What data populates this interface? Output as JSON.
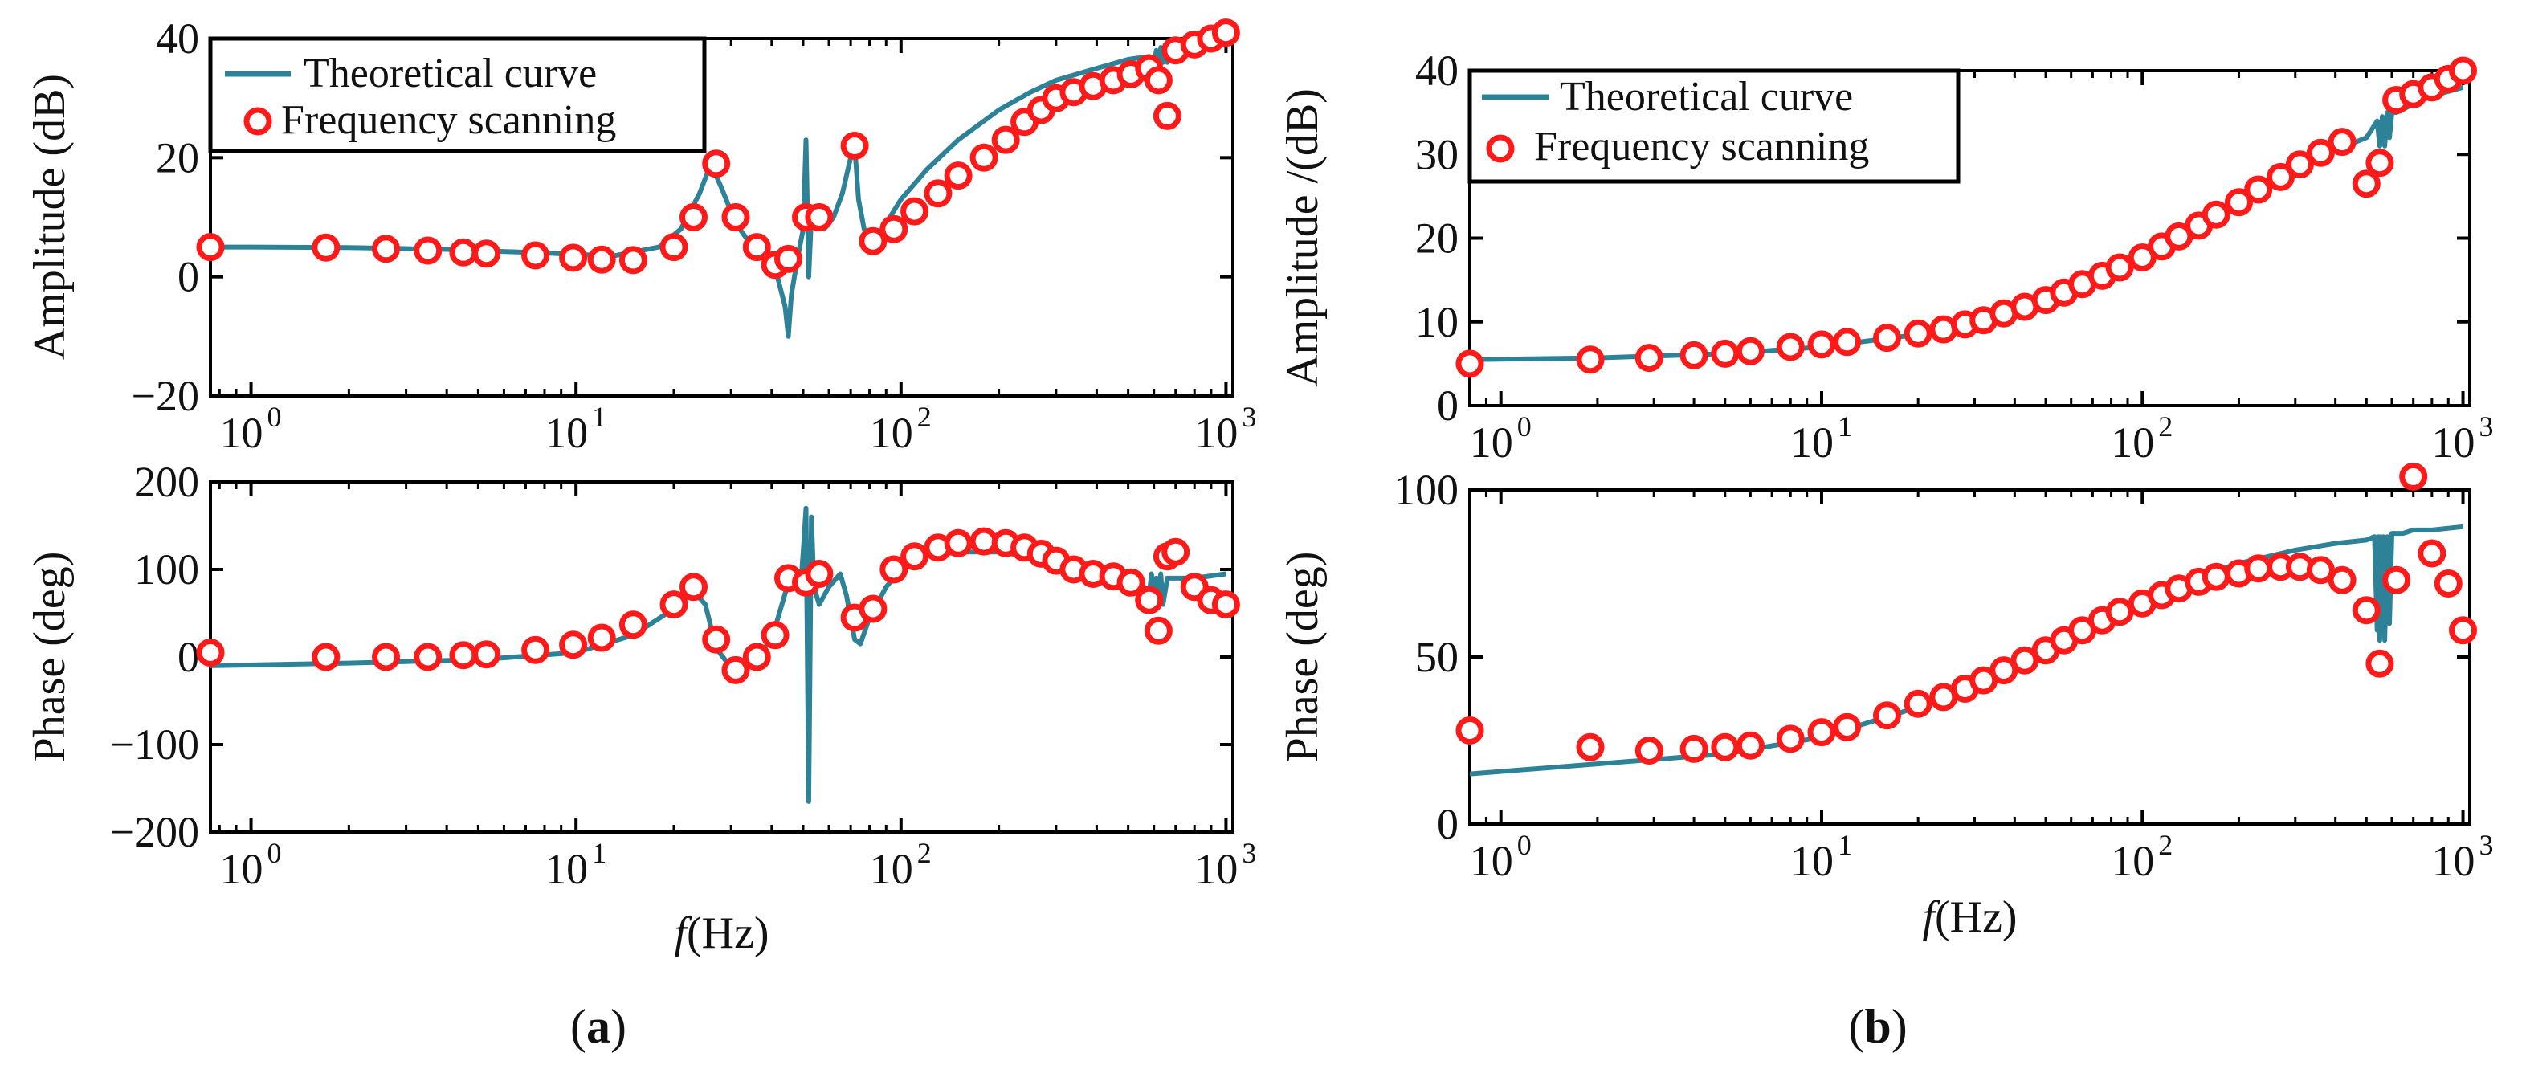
{
  "colors": {
    "theory": "#2e8297",
    "scan": "#ff1a1a",
    "axis": "#000000"
  },
  "captions": [
    {
      "open": "(",
      "letter": "a",
      "close": ")"
    },
    {
      "open": "(",
      "letter": "b",
      "close": ")"
    }
  ],
  "chart_data": [
    {
      "type": "line",
      "panel": "a-top",
      "title": "",
      "xlabel": "",
      "ylabel": "Amplitude (dB)",
      "xscale": "log",
      "xlim": [
        0.75,
        1050
      ],
      "ylim": [
        -20,
        40
      ],
      "yticks": [
        -20,
        0,
        20,
        40
      ],
      "yticklabels": [
        "−20",
        "0",
        "20",
        "40"
      ],
      "xticks": [
        {
          "base": "10",
          "exp": "0",
          "value": 1
        },
        {
          "base": "10",
          "exp": "1",
          "value": 10
        },
        {
          "base": "10",
          "exp": "2",
          "value": 100
        },
        {
          "base": "10",
          "exp": "3",
          "value": 1000
        }
      ],
      "legend": {
        "position": "top-left",
        "entries": [
          "Theoretical curve",
          "Frequency scanning"
        ]
      },
      "series": [
        {
          "name": "Theoretical curve",
          "style": "line",
          "x": [
            0.75,
            1,
            2,
            4,
            8,
            13,
            18,
            21,
            24,
            26,
            28,
            31,
            36,
            41,
            44,
            45,
            46,
            48,
            50,
            51,
            52,
            53,
            55,
            58,
            62,
            66,
            70,
            72,
            74,
            77,
            80,
            85,
            90,
            100,
            120,
            150,
            200,
            250,
            300,
            400,
            500,
            580,
            600,
            610,
            620,
            630,
            640,
            650,
            660,
            700,
            800,
            1000
          ],
          "y": [
            5,
            5,
            4.9,
            4.6,
            4,
            3.5,
            5,
            8,
            14,
            19,
            15,
            9,
            4,
            1.5,
            -5,
            -10,
            -3,
            3,
            8,
            23,
            0,
            10,
            9,
            8,
            10,
            14,
            20,
            22,
            13,
            8,
            6,
            7,
            9,
            13,
            18,
            23,
            28,
            31,
            33,
            35,
            36.5,
            37,
            35,
            38,
            34,
            38.5,
            36,
            39,
            36,
            38,
            38,
            39
          ]
        },
        {
          "name": "Frequency scanning",
          "style": "markers",
          "x": [
            0.75,
            1.7,
            2.6,
            3.5,
            4.5,
            5.3,
            7.5,
            9.8,
            12,
            15,
            20,
            23,
            27,
            31,
            36,
            41,
            45,
            51,
            56,
            72,
            82,
            95,
            110,
            130,
            150,
            180,
            210,
            240,
            270,
            300,
            340,
            390,
            450,
            510,
            580,
            620,
            660,
            700,
            800,
            900,
            1000
          ],
          "y": [
            5,
            4.9,
            4.7,
            4.4,
            4.1,
            3.9,
            3.6,
            3.2,
            2.9,
            2.8,
            5,
            10,
            19,
            10,
            5,
            2,
            3,
            10,
            10,
            22,
            6,
            8,
            11,
            14,
            17,
            20,
            23,
            26,
            28,
            30,
            31,
            32,
            33,
            34,
            35,
            33,
            27,
            38,
            39,
            40,
            41
          ]
        }
      ]
    },
    {
      "type": "line",
      "panel": "a-bottom",
      "title": "",
      "xlabel": "f(Hz)",
      "ylabel": "Phase   (deg)",
      "xscale": "log",
      "xlim": [
        0.75,
        1050
      ],
      "ylim": [
        -200,
        200
      ],
      "yticks": [
        -200,
        -100,
        0,
        100,
        200
      ],
      "yticklabels": [
        "−200",
        "−100",
        "0",
        "100",
        "200"
      ],
      "xticks": [
        {
          "base": "10",
          "exp": "0",
          "value": 1
        },
        {
          "base": "10",
          "exp": "1",
          "value": 10
        },
        {
          "base": "10",
          "exp": "2",
          "value": 100
        },
        {
          "base": "10",
          "exp": "3",
          "value": 1000
        }
      ],
      "series": [
        {
          "name": "Theoretical curve",
          "style": "line",
          "x": [
            0.75,
            2,
            5,
            10,
            15,
            20,
            23,
            25,
            27,
            29,
            31,
            33,
            36,
            40,
            43,
            45,
            47,
            49,
            50,
            51,
            52,
            53,
            54,
            56,
            60,
            65,
            68,
            72,
            75,
            80,
            90,
            100,
            120,
            150,
            200,
            300,
            400,
            500,
            560,
            580,
            590,
            600,
            610,
            620,
            630,
            640,
            660,
            700,
            800,
            1000
          ],
          "y": [
            -10,
            -7,
            -3,
            5,
            25,
            55,
            75,
            60,
            10,
            -5,
            -8,
            -5,
            0,
            20,
            60,
            85,
            90,
            75,
            120,
            170,
            -165,
            160,
            80,
            60,
            80,
            95,
            70,
            20,
            15,
            45,
            80,
            100,
            115,
            120,
            120,
            110,
            100,
            85,
            80,
            70,
            95,
            55,
            90,
            60,
            95,
            60,
            90,
            90,
            90,
            95
          ]
        },
        {
          "name": "Frequency scanning",
          "style": "markers",
          "x": [
            0.75,
            1.7,
            2.6,
            3.5,
            4.5,
            5.3,
            7.5,
            9.8,
            12,
            15,
            20,
            23,
            27,
            31,
            36,
            41,
            45,
            51,
            56,
            72,
            82,
            95,
            110,
            130,
            150,
            180,
            210,
            240,
            270,
            300,
            340,
            390,
            450,
            510,
            580,
            620,
            660,
            700,
            800,
            900,
            1000
          ],
          "y": [
            5,
            0,
            0,
            0,
            2,
            3,
            8,
            14,
            22,
            37,
            60,
            80,
            20,
            -15,
            0,
            25,
            90,
            85,
            95,
            45,
            55,
            100,
            115,
            125,
            130,
            132,
            130,
            125,
            118,
            110,
            100,
            95,
            92,
            85,
            65,
            30,
            115,
            120,
            80,
            65,
            60
          ]
        }
      ]
    },
    {
      "type": "line",
      "panel": "b-top",
      "title": "",
      "xlabel": "",
      "ylabel": "Amplitude /(dB)",
      "xscale": "log",
      "xlim": [
        0.8,
        1050
      ],
      "ylim": [
        0,
        40
      ],
      "yticks": [
        0,
        10,
        20,
        30,
        40
      ],
      "yticklabels": [
        "0",
        "10",
        "20",
        "30",
        "40"
      ],
      "xticks": [
        {
          "base": "10",
          "exp": "0",
          "value": 1
        },
        {
          "base": "10",
          "exp": "1",
          "value": 10
        },
        {
          "base": "10",
          "exp": "2",
          "value": 100
        },
        {
          "base": "10",
          "exp": "3",
          "value": 1000
        }
      ],
      "legend": {
        "position": "top-left",
        "entries": [
          "Theoretical curve",
          "Frequency scanning"
        ]
      },
      "series": [
        {
          "name": "Theoretical curve",
          "style": "line",
          "x": [
            0.8,
            2,
            5,
            10,
            20,
            30,
            50,
            70,
            100,
            150,
            200,
            300,
            400,
            500,
            540,
            550,
            560,
            570,
            580,
            590,
            600,
            620,
            700,
            800,
            1000
          ],
          "y": [
            5.5,
            5.7,
            6.2,
            7,
            8.5,
            10.5,
            13,
            15.5,
            18.5,
            22,
            24.5,
            28,
            30.5,
            32,
            34,
            31,
            34.5,
            31,
            35,
            32,
            35,
            35,
            36,
            37,
            38
          ]
        },
        {
          "name": "Frequency scanning",
          "style": "markers",
          "x": [
            0.8,
            1.9,
            2.9,
            4,
            5,
            6,
            8,
            10,
            12,
            16,
            20,
            24,
            28,
            32,
            37,
            43,
            50,
            57,
            65,
            75,
            85,
            100,
            115,
            130,
            150,
            170,
            200,
            230,
            270,
            310,
            360,
            420,
            500,
            550,
            620,
            700,
            800,
            900,
            1000
          ],
          "y": [
            5,
            5.5,
            5.7,
            6,
            6.2,
            6.5,
            7,
            7.3,
            7.6,
            8.1,
            8.6,
            9.1,
            9.7,
            10.2,
            11,
            11.8,
            12.6,
            13.5,
            14.5,
            15.5,
            16.5,
            17.7,
            19,
            20.2,
            21.5,
            22.8,
            24.3,
            25.8,
            27.3,
            28.8,
            30.2,
            31.5,
            26.5,
            29,
            36.5,
            37.2,
            38,
            39,
            40
          ]
        }
      ]
    },
    {
      "type": "line",
      "panel": "b-bottom",
      "title": "",
      "xlabel": "f(Hz)",
      "ylabel": "Phase (deg)",
      "xscale": "log",
      "xlim": [
        0.8,
        1050
      ],
      "ylim": [
        0,
        100
      ],
      "yticks": [
        0,
        50,
        100
      ],
      "yticklabels": [
        "0",
        "50",
        "100"
      ],
      "xticks": [
        {
          "base": "10",
          "exp": "0",
          "value": 1
        },
        {
          "base": "10",
          "exp": "1",
          "value": 10
        },
        {
          "base": "10",
          "exp": "2",
          "value": 100
        },
        {
          "base": "10",
          "exp": "3",
          "value": 1000
        }
      ],
      "series": [
        {
          "name": "Theoretical curve",
          "style": "line",
          "x": [
            0.8,
            2,
            5,
            10,
            20,
            30,
            50,
            70,
            100,
            150,
            200,
            300,
            400,
            500,
            530,
            540,
            545,
            550,
            555,
            560,
            565,
            570,
            580,
            590,
            600,
            650,
            700,
            800,
            1000
          ],
          "y": [
            15,
            18,
            21,
            26,
            35,
            42,
            52,
            60,
            68,
            74,
            78,
            82,
            84,
            85,
            86,
            58,
            86,
            55,
            86,
            60,
            86,
            55,
            86,
            60,
            87,
            87,
            88,
            88,
            89
          ]
        },
        {
          "name": "Frequency scanning",
          "style": "markers",
          "x": [
            0.8,
            1.9,
            2.9,
            4,
            5,
            6,
            8,
            10,
            12,
            16,
            20,
            24,
            28,
            32,
            37,
            43,
            50,
            57,
            65,
            75,
            85,
            100,
            115,
            130,
            150,
            170,
            200,
            230,
            270,
            310,
            360,
            420,
            500,
            550,
            620,
            700,
            800,
            900,
            1000
          ],
          "y": [
            28,
            23,
            22,
            22.5,
            23,
            23.5,
            25.5,
            27.5,
            29,
            32.5,
            36,
            38,
            40.5,
            43,
            46,
            49,
            52,
            55,
            58,
            61,
            63.5,
            66,
            68.5,
            70.5,
            72.5,
            74,
            75,
            76.5,
            77,
            77,
            76,
            73,
            64,
            48,
            73,
            104,
            81,
            72,
            58
          ]
        }
      ]
    }
  ]
}
